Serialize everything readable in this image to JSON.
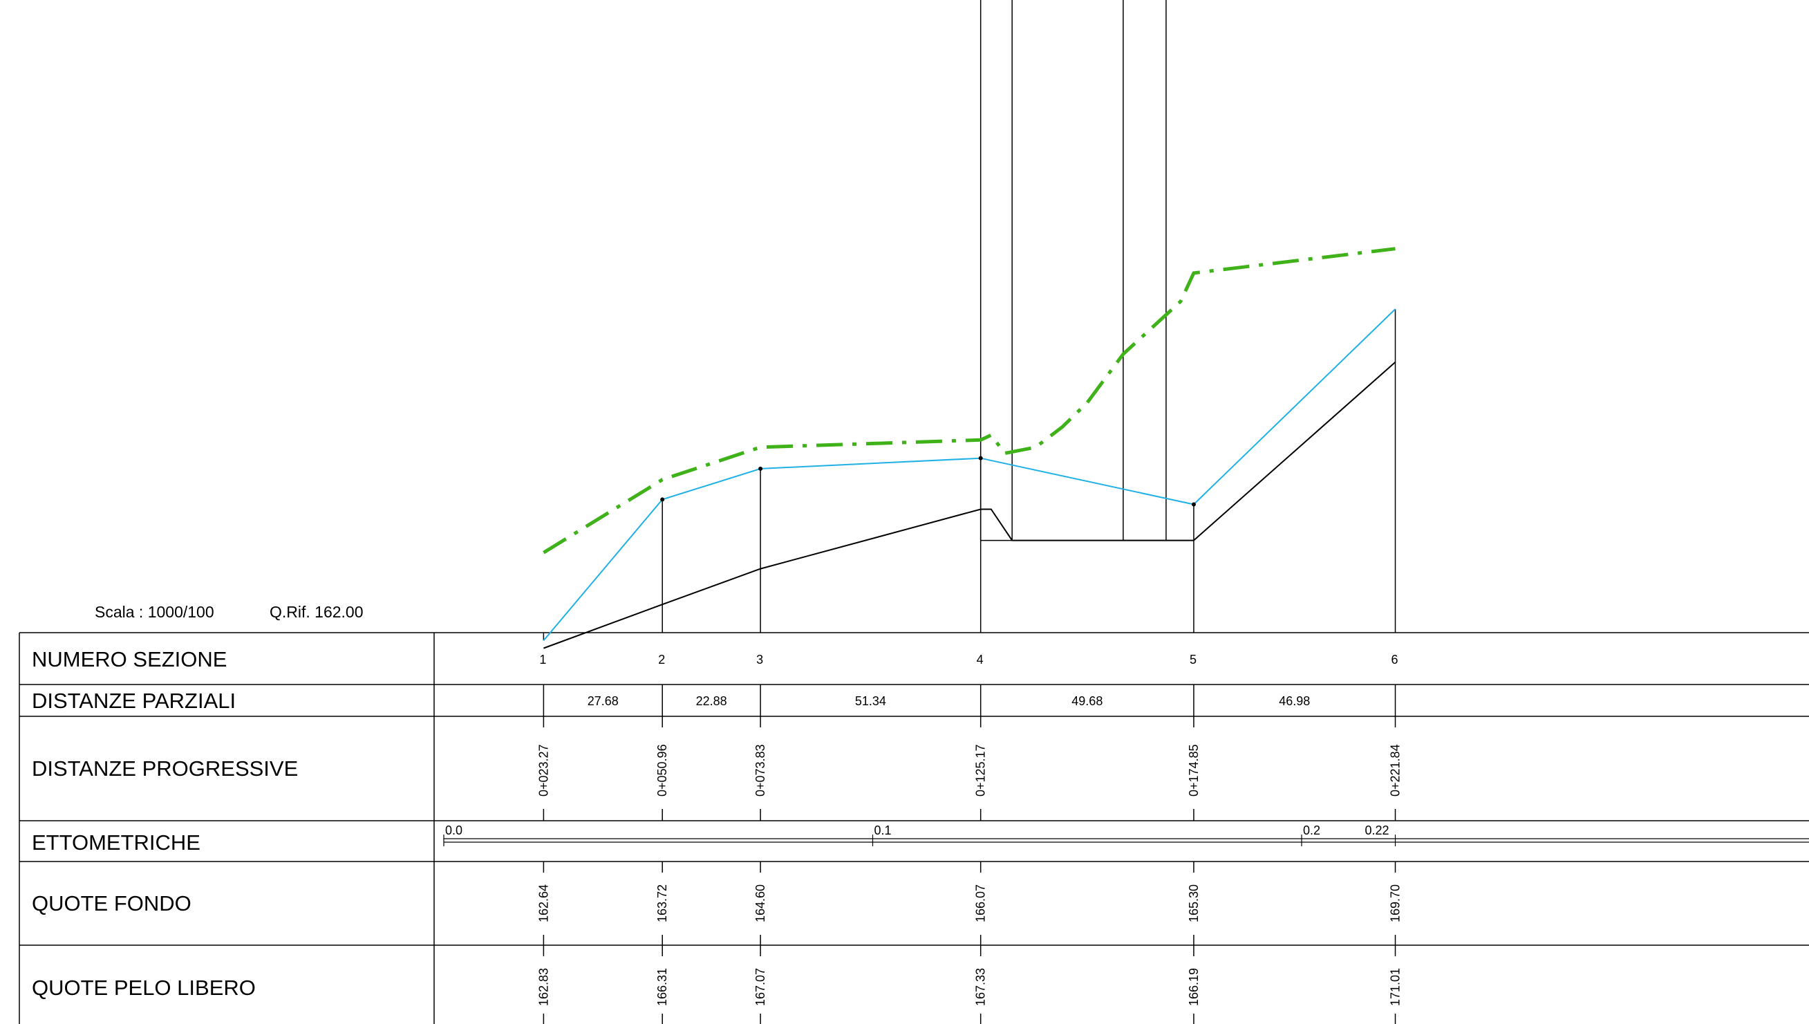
{
  "header": {
    "scale_text": "Scala : 1000/100",
    "ref_text": "Q.Rif. 162.00"
  },
  "rows": {
    "numero_sezione": "NUMERO SEZIONE",
    "distanze_parziali": "DISTANZE PARZIALI",
    "distanze_progressive": "DISTANZE PROGRESSIVE",
    "ettometriche": "ETTOMETRICHE",
    "quote_fondo": "QUOTE FONDO",
    "quote_pelo_libero": "QUOTE PELO LIBERO"
  },
  "colors": {
    "bed": "#000000",
    "water": "#1fb1e6",
    "energy": "#3fb21a",
    "grid": "#000000"
  },
  "chart_data": {
    "type": "line",
    "reference_elevation": 162.0,
    "vertical_exaggeration": 10,
    "sections": [
      {
        "id": "1",
        "progressive": "0+023.27",
        "x": 23.27,
        "fondo": "162.64",
        "pelo": "162.83"
      },
      {
        "id": "2",
        "progressive": "0+050.96",
        "x": 50.96,
        "fondo": "163.72",
        "pelo": "166.31"
      },
      {
        "id": "3",
        "progressive": "0+073.83",
        "x": 73.83,
        "fondo": "164.60",
        "pelo": "167.07"
      },
      {
        "id": "4",
        "progressive": "0+125.17",
        "x": 125.17,
        "fondo": "166.07",
        "pelo": "167.33"
      },
      {
        "id": "5",
        "progressive": "0+174.85",
        "x": 174.85,
        "fondo": "165.30",
        "pelo": "166.19"
      },
      {
        "id": "6",
        "progressive": "0+221.84",
        "x": 221.84,
        "fondo": "169.70",
        "pelo": "171.01"
      }
    ],
    "partial_distances": [
      "27.68",
      "22.88",
      "51.34",
      "49.68",
      "46.98"
    ],
    "hectometric": [
      {
        "label": "0.0",
        "x": 0.0
      },
      {
        "label": "0.1",
        "x": 100.0
      },
      {
        "label": "0.2",
        "x": 200.0
      },
      {
        "label": "0.22",
        "x": 221.84
      }
    ],
    "bed_profile": [
      {
        "x": 23.27,
        "z": 162.64
      },
      {
        "x": 50.96,
        "z": 163.72
      },
      {
        "x": 73.83,
        "z": 164.6
      },
      {
        "x": 125.17,
        "z": 166.07
      },
      {
        "x": 127.6,
        "z": 166.07
      },
      {
        "x": 132.5,
        "z": 165.3
      },
      {
        "x": 174.85,
        "z": 165.3
      },
      {
        "x": 221.84,
        "z": 169.7
      }
    ],
    "water_profile": [
      {
        "x": 23.27,
        "z": 162.83
      },
      {
        "x": 50.96,
        "z": 166.31
      },
      {
        "x": 73.83,
        "z": 167.07
      },
      {
        "x": 125.17,
        "z": 167.33
      },
      {
        "x": 174.85,
        "z": 166.19
      },
      {
        "x": 221.84,
        "z": 171.01
      }
    ],
    "energy_profile": [
      {
        "x": 23.27,
        "z": 165.0
      },
      {
        "x": 50.96,
        "z": 166.8
      },
      {
        "x": 73.83,
        "z": 167.6
      },
      {
        "x": 125.17,
        "z": 167.78
      },
      {
        "x": 127.6,
        "z": 167.9
      },
      {
        "x": 130.8,
        "z": 167.45
      },
      {
        "x": 138.0,
        "z": 167.6
      },
      {
        "x": 144.2,
        "z": 168.1
      },
      {
        "x": 150.0,
        "z": 168.7
      },
      {
        "x": 158.4,
        "z": 169.9
      },
      {
        "x": 171.8,
        "z": 171.2
      },
      {
        "x": 174.85,
        "z": 171.9
      },
      {
        "x": 221.84,
        "z": 172.5
      }
    ],
    "structures": [
      {
        "x_left": 125.17,
        "x_right": 132.5,
        "z_top": 184.6,
        "z_mid": 181.2,
        "z_bottom": 165.3
      },
      {
        "x_left": 158.4,
        "x_right": 168.4,
        "z_top": 184.6,
        "z_mid": 181.2,
        "z_bottom": 165.3
      }
    ]
  }
}
